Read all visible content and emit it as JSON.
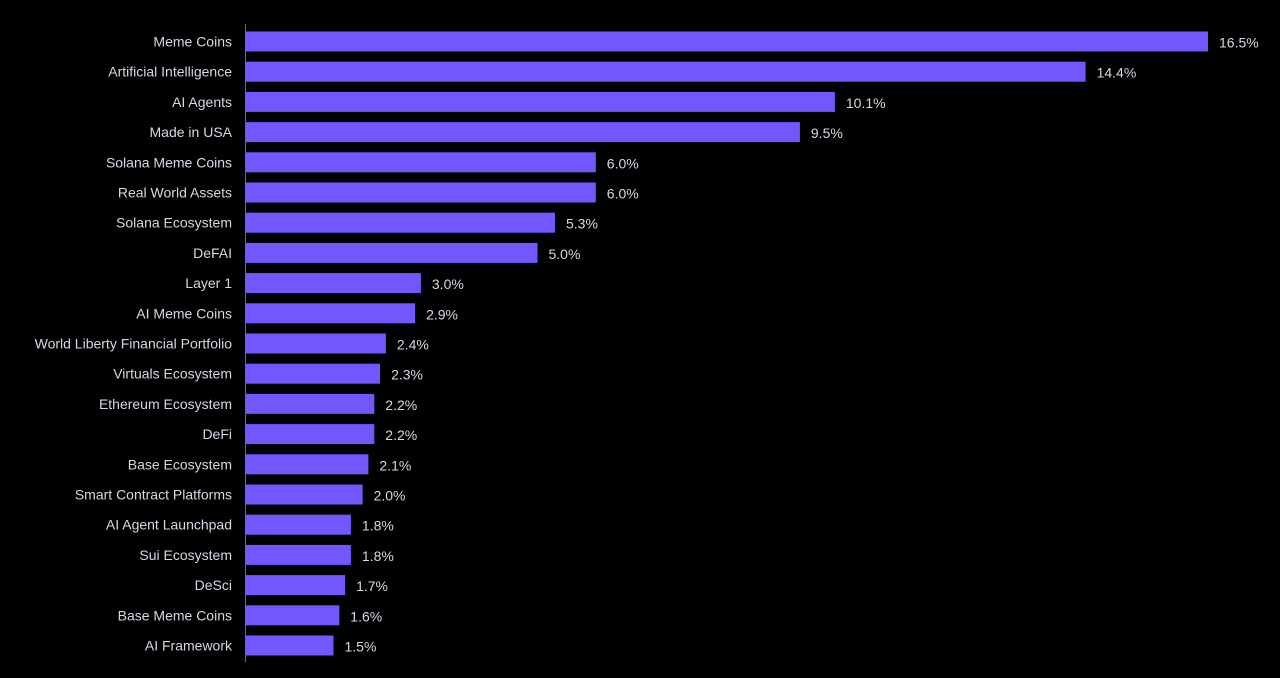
{
  "chart_data": {
    "type": "bar",
    "orientation": "horizontal",
    "title": "",
    "xlabel": "",
    "ylabel": "",
    "value_suffix": "%",
    "categories": [
      "Meme Coins",
      "Artificial Intelligence",
      "AI Agents",
      "Made in USA",
      "Solana Meme Coins",
      "Real World Assets",
      "Solana Ecosystem",
      "DeFAI",
      "Layer 1",
      "AI Meme Coins",
      "World Liberty Financial Portfolio",
      "Virtuals Ecosystem",
      "Ethereum Ecosystem",
      "DeFi",
      "Base Ecosystem",
      "Smart Contract Platforms",
      "AI Agent Launchpad",
      "Sui Ecosystem",
      "DeSci",
      "Base Meme Coins",
      "AI Framework"
    ],
    "values": [
      16.5,
      14.4,
      10.1,
      9.5,
      6.0,
      6.0,
      5.3,
      5.0,
      3.0,
      2.9,
      2.4,
      2.3,
      2.2,
      2.2,
      2.1,
      2.0,
      1.8,
      1.8,
      1.7,
      1.6,
      1.5
    ],
    "value_labels": [
      "16.5%",
      "14.4%",
      "10.1%",
      "9.5%",
      "6.0%",
      "6.0%",
      "5.3%",
      "5.0%",
      "3.0%",
      "2.9%",
      "2.4%",
      "2.3%",
      "2.2%",
      "2.2%",
      "2.1%",
      "2.0%",
      "1.8%",
      "1.8%",
      "1.7%",
      "1.6%",
      "1.5%"
    ],
    "xlim": [
      0,
      16.5
    ],
    "grid": false,
    "legend": "none",
    "colors": {
      "background": "#000000",
      "bar": "#7456ff",
      "axis": "#6e6e78",
      "text": "#d6d7e6"
    }
  }
}
